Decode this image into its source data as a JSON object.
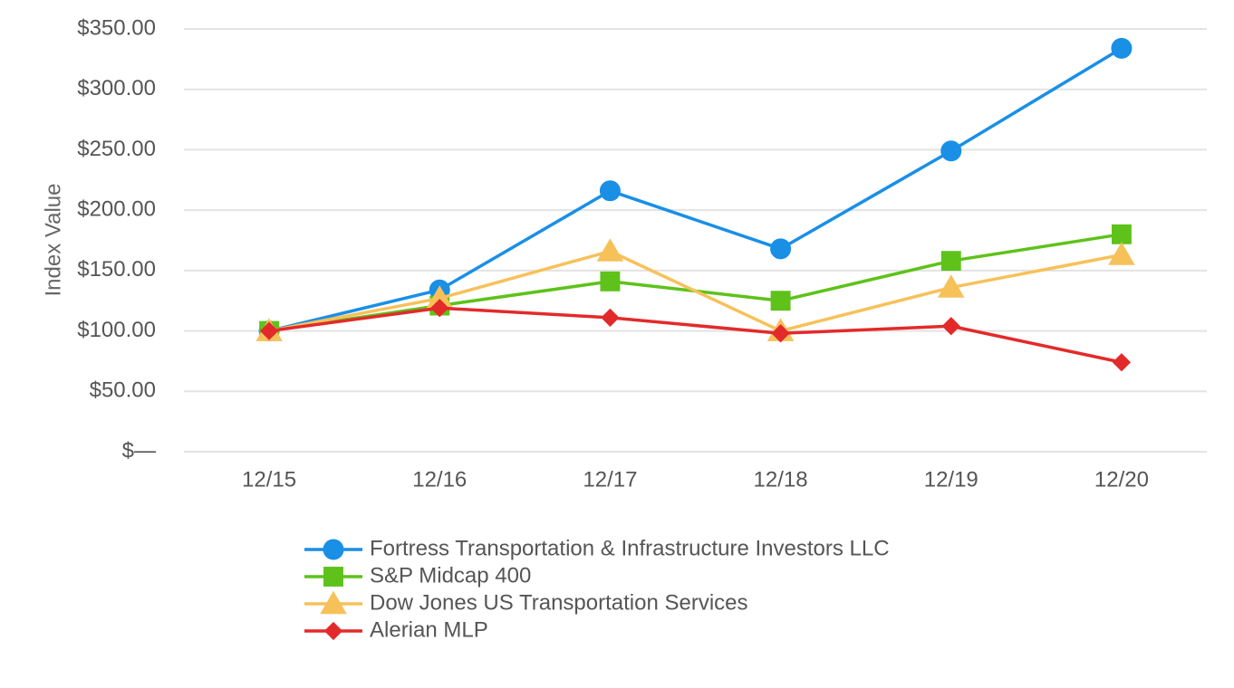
{
  "chart_data": {
    "type": "line",
    "title": "",
    "xlabel": "",
    "ylabel": "Index Value",
    "categories": [
      "12/15",
      "12/16",
      "12/17",
      "12/18",
      "12/19",
      "12/20"
    ],
    "y_ticks": [
      0,
      50,
      100,
      150,
      200,
      250,
      300,
      350
    ],
    "y_tick_labels": [
      "$—",
      "$50.00",
      "$100.00",
      "$150.00",
      "$200.00",
      "$250.00",
      "$300.00",
      "$350.00"
    ],
    "ylim": [
      0,
      350
    ],
    "grid": true,
    "legend_position": "bottom",
    "series": [
      {
        "name": "Fortress Transportation & Infrastructure Investors LLC",
        "color": "#1a8fe6",
        "marker": "circle",
        "values": [
          100,
          134,
          216,
          168,
          249,
          334
        ]
      },
      {
        "name": "S&P Midcap 400",
        "color": "#5ec21a",
        "marker": "square",
        "values": [
          100,
          121,
          141,
          125,
          158,
          180
        ]
      },
      {
        "name": "Dow Jones US Transportation Services",
        "color": "#f7c15a",
        "marker": "triangle",
        "values": [
          100,
          127,
          166,
          100,
          136,
          163
        ]
      },
      {
        "name": "Alerian MLP",
        "color": "#e32a2a",
        "marker": "diamond",
        "values": [
          100,
          119,
          111,
          98,
          104,
          74
        ]
      }
    ]
  }
}
